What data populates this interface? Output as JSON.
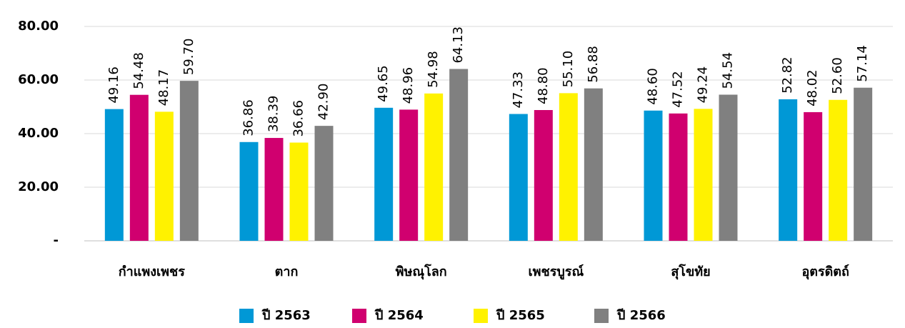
{
  "chart_data": {
    "type": "bar",
    "categories": [
      "กำแพงเพชร",
      "ตาก",
      "พิษณุโลก",
      "เพชรบูรณ์",
      "สุโขทัย",
      "อุตรดิตถ์"
    ],
    "series": [
      {
        "name": "ปี 2563",
        "color": "#0098d6",
        "values": [
          49.16,
          36.86,
          49.65,
          47.33,
          48.6,
          52.82
        ],
        "value_labels": [
          "49.16",
          "36.86",
          "49.65",
          "47.33",
          "48.60",
          "52.82"
        ]
      },
      {
        "name": "ปี 2564",
        "color": "#d0006f",
        "values": [
          54.48,
          38.39,
          48.96,
          48.8,
          47.52,
          48.02
        ],
        "value_labels": [
          "54.48",
          "38.39",
          "48.96",
          "48.80",
          "47.52",
          "48.02"
        ]
      },
      {
        "name": "ปี 2565",
        "color": "#fff200",
        "values": [
          48.17,
          36.66,
          54.98,
          55.1,
          49.24,
          52.6
        ],
        "value_labels": [
          "48.17",
          "36.66",
          "54.98",
          "55.10",
          "49.24",
          "52.60"
        ]
      },
      {
        "name": "ปี 2566",
        "color": "#808080",
        "values": [
          59.7,
          42.9,
          64.13,
          56.88,
          54.54,
          57.14
        ],
        "value_labels": [
          "59.70",
          "42.90",
          "64.13",
          "56.88",
          "54.54",
          "57.14"
        ]
      }
    ],
    "ylim": [
      0,
      80
    ],
    "yticks": [
      {
        "value": 0,
        "label": "-"
      },
      {
        "value": 20,
        "label": "20.00"
      },
      {
        "value": 40,
        "label": "40.00"
      },
      {
        "value": 60,
        "label": "60.00"
      },
      {
        "value": 80,
        "label": "80.00"
      }
    ],
    "grid": true,
    "legend": "bottom"
  }
}
